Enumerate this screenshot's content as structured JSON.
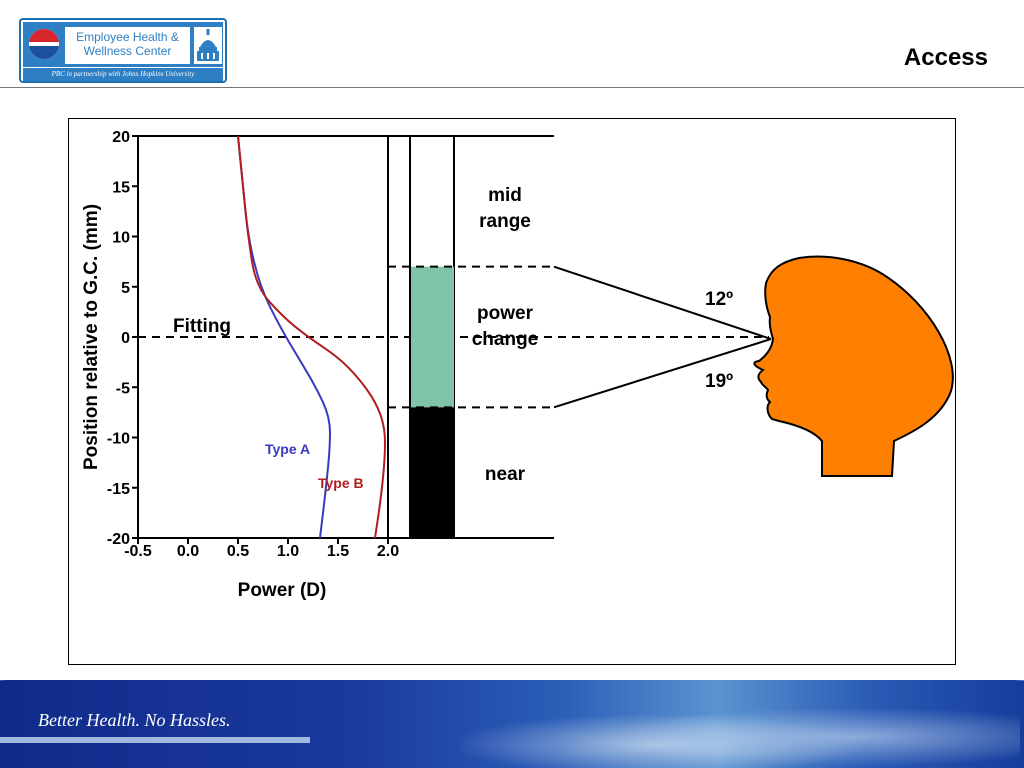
{
  "header": {
    "title": "Access",
    "logo": {
      "name_line1": "Employee Health &",
      "name_line2": "Wellness Center",
      "tagline": "PBC in partnership with Johns Hopkins University",
      "icons": [
        "pepsi-globe-icon",
        "dome-building-icon"
      ]
    }
  },
  "footer": {
    "slogan": "Better Health.  No Hassles."
  },
  "colors": {
    "type_a": "#3a3ac0",
    "type_b": "#b01e1e",
    "power_change_fill": "#7fc4a8",
    "near_fill": "#000000",
    "head_fill": "#ff8000",
    "footer_blue": "#1b3a9e"
  },
  "chart_data": {
    "type": "line",
    "xlabel": "Power (D)",
    "ylabel": "Position relative to G.C. (mm)",
    "xlim": [
      -0.5,
      2.0
    ],
    "ylim": [
      -20,
      20
    ],
    "xticks": [
      "-0.5",
      "0.0",
      "0.5",
      "1.0",
      "1.5",
      "2.0"
    ],
    "yticks": [
      "20",
      "15",
      "10",
      "5",
      "0",
      "-5",
      "-10",
      "-15",
      "-20"
    ],
    "fitting_label": "Fitting",
    "fitting_y": 0,
    "series": [
      {
        "name": "Type A",
        "color": "#3a3ac0",
        "points": [
          [
            0.5,
            20
          ],
          [
            0.55,
            15
          ],
          [
            0.6,
            10
          ],
          [
            0.72,
            5
          ],
          [
            0.92,
            1
          ],
          [
            1.1,
            -2
          ],
          [
            1.28,
            -5
          ],
          [
            1.42,
            -8
          ],
          [
            1.42,
            -11
          ],
          [
            1.38,
            -15
          ],
          [
            1.32,
            -20
          ]
        ]
      },
      {
        "name": "Type B",
        "color": "#b01e1e",
        "points": [
          [
            0.5,
            20
          ],
          [
            0.55,
            15
          ],
          [
            0.6,
            10
          ],
          [
            0.68,
            5
          ],
          [
            0.95,
            2
          ],
          [
            1.2,
            0
          ],
          [
            1.5,
            -2
          ],
          [
            1.7,
            -4
          ],
          [
            1.88,
            -6.5
          ],
          [
            1.97,
            -9
          ],
          [
            1.97,
            -12
          ],
          [
            1.93,
            -16
          ],
          [
            1.87,
            -20
          ]
        ]
      }
    ],
    "zones": [
      {
        "label_lines": [
          "mid",
          "range"
        ],
        "from": 7,
        "to": 20
      },
      {
        "label_lines": [
          "power",
          "change"
        ],
        "from": -7,
        "to": 7
      },
      {
        "label_lines": [
          "near"
        ],
        "from": -20,
        "to": -7
      }
    ],
    "angles": {
      "upper": "12º",
      "lower": "19º"
    }
  }
}
